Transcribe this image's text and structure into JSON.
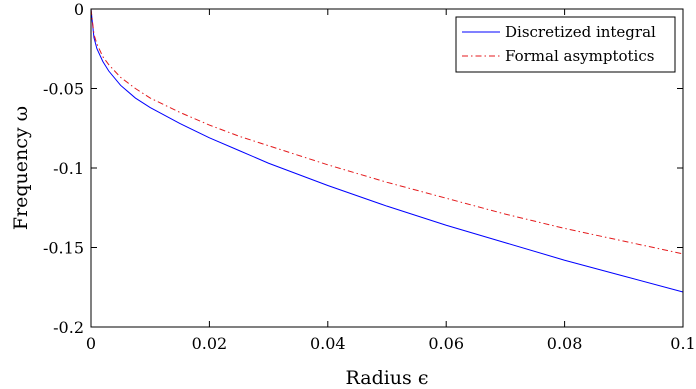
{
  "chart_data": {
    "type": "line",
    "title": "",
    "xlabel": "Radius ϵ",
    "ylabel": "Frequency ω",
    "xlim": [
      0,
      0.1
    ],
    "ylim": [
      -0.2,
      0
    ],
    "xticks": [
      0,
      0.02,
      0.04,
      0.06,
      0.08,
      0.1
    ],
    "xtick_labels": [
      "0",
      "0.02",
      "0.04",
      "0.06",
      "0.08",
      "0.1"
    ],
    "yticks": [
      0,
      -0.05,
      -0.1,
      -0.15,
      -0.2
    ],
    "ytick_labels": [
      "0",
      "-0.05",
      "-0.1",
      "-0.15",
      "-0.2"
    ],
    "grid": false,
    "legend_position": "top-right",
    "series": [
      {
        "name": "Discretized integral",
        "color": "#0000ff",
        "style": "solid",
        "x": [
          0,
          0.0005,
          0.001,
          0.002,
          0.003,
          0.005,
          0.0075,
          0.01,
          0.015,
          0.02,
          0.025,
          0.03,
          0.04,
          0.05,
          0.06,
          0.07,
          0.08,
          0.09,
          0.1
        ],
        "y": [
          0,
          -0.018,
          -0.025,
          -0.033,
          -0.039,
          -0.048,
          -0.056,
          -0.062,
          -0.072,
          -0.081,
          -0.089,
          -0.097,
          -0.111,
          -0.124,
          -0.136,
          -0.147,
          -0.158,
          -0.168,
          -0.178
        ]
      },
      {
        "name": "Formal asymptotics",
        "color": "#e41a1c",
        "style": "dashdot",
        "x": [
          0,
          0.0005,
          0.001,
          0.002,
          0.003,
          0.005,
          0.0075,
          0.01,
          0.015,
          0.02,
          0.025,
          0.03,
          0.04,
          0.05,
          0.06,
          0.07,
          0.08,
          0.09,
          0.1
        ],
        "y": [
          0,
          -0.016,
          -0.022,
          -0.03,
          -0.035,
          -0.043,
          -0.05,
          -0.056,
          -0.065,
          -0.073,
          -0.08,
          -0.086,
          -0.098,
          -0.109,
          -0.119,
          -0.129,
          -0.138,
          -0.146,
          -0.154
        ]
      }
    ]
  }
}
